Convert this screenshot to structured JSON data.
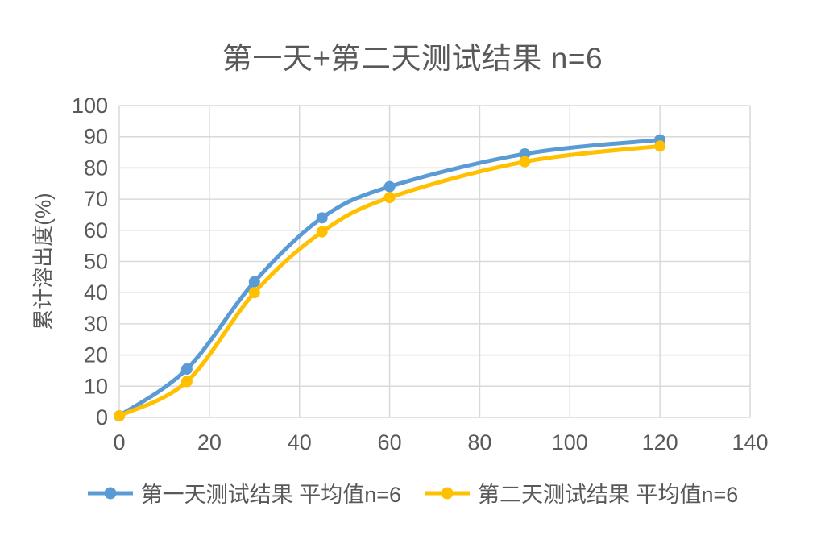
{
  "title": "第一天+第二天测试结果 n=6",
  "colors": {
    "series1": "#5B9BD5",
    "series2": "#FFC000",
    "gridline": "#D9D9D9",
    "axis_line": "#D9D9D9",
    "axis_text": "#595959",
    "title_text": "#595959"
  },
  "chart_data": {
    "type": "line",
    "title": "第一天+第二天测试结果 n=6",
    "xlabel": "",
    "ylabel": "累计溶出度(%)",
    "x": [
      0,
      15,
      30,
      45,
      60,
      90,
      120
    ],
    "series": [
      {
        "name": "第一天测试结果 平均值n=6",
        "color": "#5B9BD5",
        "values": [
          0.5,
          15.5,
          43.5,
          64,
          74,
          84.5,
          89
        ]
      },
      {
        "name": "第二天测试结果 平均值n=6",
        "color": "#FFC000",
        "values": [
          0.5,
          11.5,
          40,
          59.5,
          70.5,
          82,
          87
        ]
      }
    ],
    "xlim": [
      0,
      140
    ],
    "ylim": [
      0,
      100
    ],
    "x_ticks": [
      0,
      20,
      40,
      60,
      80,
      100,
      120,
      140
    ],
    "y_ticks": [
      0,
      10,
      20,
      30,
      40,
      50,
      60,
      70,
      80,
      90,
      100
    ],
    "grid": "both-major",
    "smooth": true,
    "marker": "circle",
    "legend_position": "bottom"
  }
}
